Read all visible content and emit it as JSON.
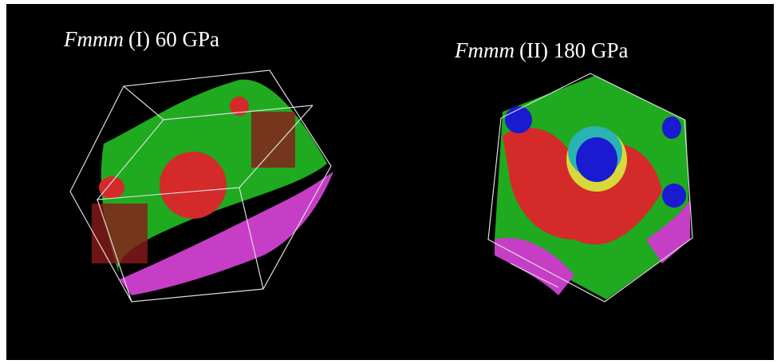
{
  "panels": [
    {
      "space_group": "Fmmm",
      "label": "(I) 60 GPa"
    },
    {
      "space_group": "Fmmm",
      "label": "(II) 180 GPa"
    }
  ]
}
